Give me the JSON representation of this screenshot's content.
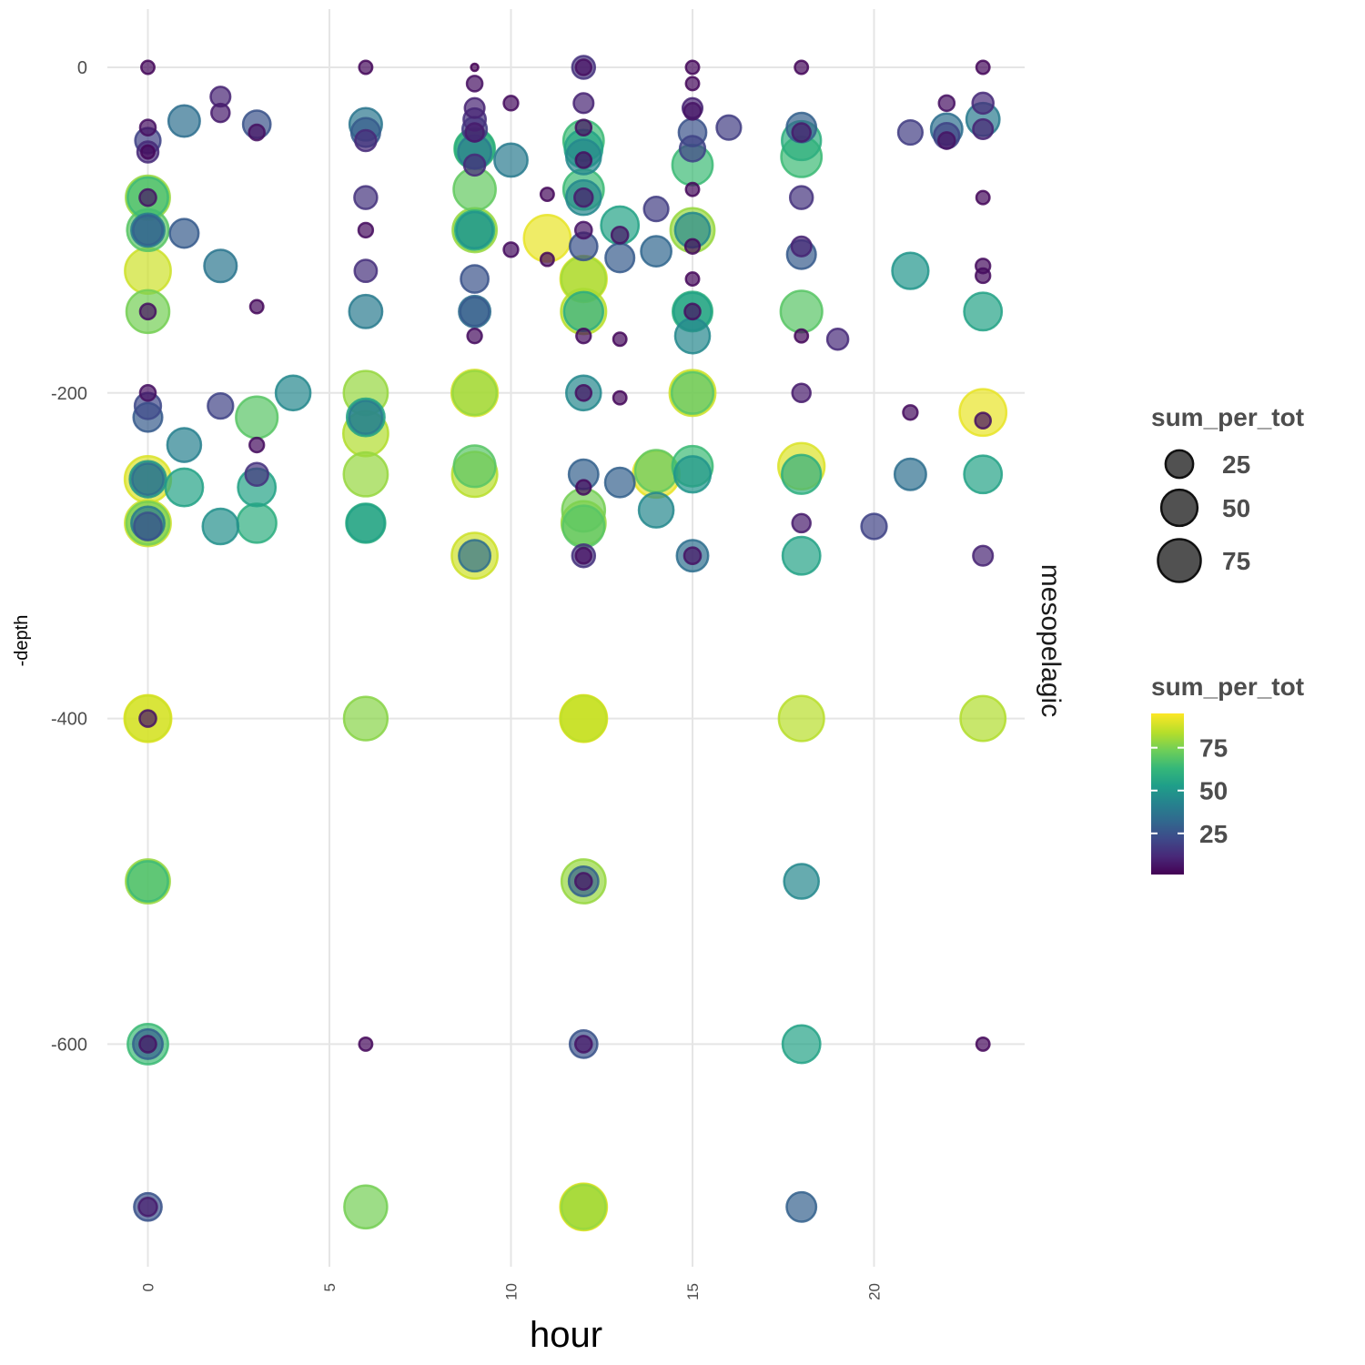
{
  "chart_data": {
    "type": "scatter",
    "subtype": "bubble",
    "facet_label": "mesopelagic",
    "xlabel": "hour",
    "ylabel": "-depth",
    "xlim": [
      -1.1,
      24.1
    ],
    "ylim": [
      -735,
      33
    ],
    "x_ticks": [
      0,
      5,
      10,
      15,
      20
    ],
    "x_tick_labels": [
      "0",
      "5",
      "10",
      "15",
      "20"
    ],
    "y_ticks": [
      0,
      -200,
      -400,
      -600
    ],
    "y_tick_labels": [
      "0",
      "-200",
      "-400",
      "-600"
    ],
    "grid": true,
    "legend_size": {
      "title": "sum_per_tot",
      "values": [
        25,
        50,
        75
      ],
      "labels": [
        "25",
        "50",
        "75"
      ]
    },
    "legend_color": {
      "title": "sum_per_tot",
      "labels": [
        "75",
        "50",
        "25"
      ],
      "label_values": [
        75,
        50,
        25
      ],
      "range": [
        1,
        95
      ],
      "palette": "viridis"
    },
    "points": [
      {
        "x": 0,
        "y": 0,
        "v": 3
      },
      {
        "x": 0,
        "y": -37,
        "v": 5
      },
      {
        "x": 0,
        "y": -45,
        "v": 20
      },
      {
        "x": 0,
        "y": -52,
        "v": 12
      },
      {
        "x": 0,
        "y": -52,
        "v": 3
      },
      {
        "x": 0,
        "y": -80,
        "v": 80
      },
      {
        "x": 0,
        "y": -80,
        "v": 65
      },
      {
        "x": 0,
        "y": -80,
        "v": 6
      },
      {
        "x": 0,
        "y": -100,
        "v": 70
      },
      {
        "x": 0,
        "y": -100,
        "v": 40
      },
      {
        "x": 0,
        "y": -100,
        "v": 30
      },
      {
        "x": 0,
        "y": -125,
        "v": 88
      },
      {
        "x": 0,
        "y": -150,
        "v": 75
      },
      {
        "x": 0,
        "y": -150,
        "v": 5
      },
      {
        "x": 0,
        "y": -200,
        "v": 5
      },
      {
        "x": 0,
        "y": -208,
        "v": 22
      },
      {
        "x": 0,
        "y": -215,
        "v": 28
      },
      {
        "x": 0,
        "y": -253,
        "v": 90
      },
      {
        "x": 0,
        "y": -253,
        "v": 50
      },
      {
        "x": 0,
        "y": -253,
        "v": 35
      },
      {
        "x": 0,
        "y": -280,
        "v": 88
      },
      {
        "x": 0,
        "y": -280,
        "v": 75
      },
      {
        "x": 0,
        "y": -280,
        "v": 40
      },
      {
        "x": 0,
        "y": -282,
        "v": 25
      },
      {
        "x": 0,
        "y": -400,
        "v": 93
      },
      {
        "x": 0,
        "y": -400,
        "v": 88
      },
      {
        "x": 0,
        "y": -400,
        "v": 6
      },
      {
        "x": 0,
        "y": -500,
        "v": 80
      },
      {
        "x": 0,
        "y": -500,
        "v": 65
      },
      {
        "x": 0,
        "y": -600,
        "v": 65
      },
      {
        "x": 0,
        "y": -600,
        "v": 30
      },
      {
        "x": 0,
        "y": -600,
        "v": 6
      },
      {
        "x": 0,
        "y": -700,
        "v": 25
      },
      {
        "x": 0,
        "y": -700,
        "v": 8
      },
      {
        "x": 1,
        "y": -33,
        "v": 35
      },
      {
        "x": 1,
        "y": -102,
        "v": 28
      },
      {
        "x": 1,
        "y": -232,
        "v": 42
      },
      {
        "x": 1,
        "y": -258,
        "v": 55
      },
      {
        "x": 2,
        "y": -18,
        "v": 10
      },
      {
        "x": 2,
        "y": -28,
        "v": 8
      },
      {
        "x": 2,
        "y": -122,
        "v": 38
      },
      {
        "x": 2,
        "y": -208,
        "v": 20
      },
      {
        "x": 2,
        "y": -282,
        "v": 48
      },
      {
        "x": 3,
        "y": -35,
        "v": 25
      },
      {
        "x": 3,
        "y": -40,
        "v": 5
      },
      {
        "x": 3,
        "y": -147,
        "v": 3
      },
      {
        "x": 3,
        "y": -215,
        "v": 70
      },
      {
        "x": 3,
        "y": -232,
        "v": 4
      },
      {
        "x": 3,
        "y": -250,
        "v": 15
      },
      {
        "x": 3,
        "y": -258,
        "v": 55
      },
      {
        "x": 3,
        "y": -280,
        "v": 60
      },
      {
        "x": 4,
        "y": -200,
        "v": 45
      },
      {
        "x": 6,
        "y": 0,
        "v": 3
      },
      {
        "x": 6,
        "y": -35,
        "v": 38
      },
      {
        "x": 6,
        "y": -40,
        "v": 28
      },
      {
        "x": 6,
        "y": -45,
        "v": 12
      },
      {
        "x": 6,
        "y": -80,
        "v": 15
      },
      {
        "x": 6,
        "y": -100,
        "v": 4
      },
      {
        "x": 6,
        "y": -125,
        "v": 14
      },
      {
        "x": 6,
        "y": -150,
        "v": 40
      },
      {
        "x": 6,
        "y": -200,
        "v": 80
      },
      {
        "x": 6,
        "y": -215,
        "v": 55
      },
      {
        "x": 6,
        "y": -225,
        "v": 84
      },
      {
        "x": 6,
        "y": -215,
        "v": 40
      },
      {
        "x": 6,
        "y": -250,
        "v": 80
      },
      {
        "x": 6,
        "y": -280,
        "v": 60
      },
      {
        "x": 6,
        "y": -280,
        "v": 55
      },
      {
        "x": 6,
        "y": -400,
        "v": 78
      },
      {
        "x": 6,
        "y": -600,
        "v": 3
      },
      {
        "x": 6,
        "y": -700,
        "v": 75
      },
      {
        "x": 9,
        "y": 0,
        "v": 1
      },
      {
        "x": 9,
        "y": -10,
        "v": 5
      },
      {
        "x": 9,
        "y": -25,
        "v": 10
      },
      {
        "x": 9,
        "y": -32,
        "v": 14
      },
      {
        "x": 9,
        "y": -38,
        "v": 18
      },
      {
        "x": 9,
        "y": -40,
        "v": 8
      },
      {
        "x": 9,
        "y": -50,
        "v": 65
      },
      {
        "x": 9,
        "y": -50,
        "v": 60
      },
      {
        "x": 9,
        "y": -52,
        "v": 40
      },
      {
        "x": 9,
        "y": -60,
        "v": 12
      },
      {
        "x": 9,
        "y": -75,
        "v": 72
      },
      {
        "x": 9,
        "y": -100,
        "v": 80
      },
      {
        "x": 9,
        "y": -100,
        "v": 60
      },
      {
        "x": 9,
        "y": -100,
        "v": 50
      },
      {
        "x": 9,
        "y": -130,
        "v": 25
      },
      {
        "x": 9,
        "y": -150,
        "v": 35
      },
      {
        "x": 9,
        "y": -150,
        "v": 28
      },
      {
        "x": 9,
        "y": -165,
        "v": 4
      },
      {
        "x": 9,
        "y": -200,
        "v": 90
      },
      {
        "x": 9,
        "y": -200,
        "v": 80
      },
      {
        "x": 9,
        "y": -250,
        "v": 85
      },
      {
        "x": 9,
        "y": -245,
        "v": 70
      },
      {
        "x": 9,
        "y": -300,
        "v": 88
      },
      {
        "x": 9,
        "y": -300,
        "v": 35
      },
      {
        "x": 10,
        "y": -22,
        "v": 4
      },
      {
        "x": 10,
        "y": -57,
        "v": 40
      },
      {
        "x": 10,
        "y": -112,
        "v": 4
      },
      {
        "x": 11,
        "y": -105,
        "v": 92
      },
      {
        "x": 11,
        "y": -78,
        "v": 3
      },
      {
        "x": 11,
        "y": -118,
        "v": 3
      },
      {
        "x": 12,
        "y": 0,
        "v": 15
      },
      {
        "x": 12,
        "y": 0,
        "v": 5
      },
      {
        "x": 12,
        "y": -22,
        "v": 10
      },
      {
        "x": 12,
        "y": -37,
        "v": 5
      },
      {
        "x": 12,
        "y": -45,
        "v": 65
      },
      {
        "x": 12,
        "y": -50,
        "v": 55
      },
      {
        "x": 12,
        "y": -55,
        "v": 45
      },
      {
        "x": 12,
        "y": -57,
        "v": 5
      },
      {
        "x": 12,
        "y": -75,
        "v": 65
      },
      {
        "x": 12,
        "y": -80,
        "v": 45
      },
      {
        "x": 12,
        "y": -80,
        "v": 8
      },
      {
        "x": 12,
        "y": -100,
        "v": 6
      },
      {
        "x": 12,
        "y": -110,
        "v": 25
      },
      {
        "x": 12,
        "y": -130,
        "v": 90
      },
      {
        "x": 12,
        "y": -130,
        "v": 82
      },
      {
        "x": 12,
        "y": -150,
        "v": 85
      },
      {
        "x": 12,
        "y": -150,
        "v": 60
      },
      {
        "x": 12,
        "y": -165,
        "v": 4
      },
      {
        "x": 12,
        "y": -200,
        "v": 45
      },
      {
        "x": 12,
        "y": -200,
        "v": 5
      },
      {
        "x": 12,
        "y": -250,
        "v": 30
      },
      {
        "x": 12,
        "y": -258,
        "v": 4
      },
      {
        "x": 12,
        "y": -272,
        "v": 75
      },
      {
        "x": 12,
        "y": -280,
        "v": 80
      },
      {
        "x": 12,
        "y": -282,
        "v": 70
      },
      {
        "x": 12,
        "y": -300,
        "v": 15
      },
      {
        "x": 12,
        "y": -300,
        "v": 5
      },
      {
        "x": 12,
        "y": -400,
        "v": 93
      },
      {
        "x": 12,
        "y": -400,
        "v": 90
      },
      {
        "x": 12,
        "y": -400,
        "v": 86
      },
      {
        "x": 12,
        "y": -500,
        "v": 80
      },
      {
        "x": 12,
        "y": -500,
        "v": 30
      },
      {
        "x": 12,
        "y": -500,
        "v": 6
      },
      {
        "x": 12,
        "y": -600,
        "v": 25
      },
      {
        "x": 12,
        "y": -600,
        "v": 6
      },
      {
        "x": 12,
        "y": -700,
        "v": 92
      },
      {
        "x": 12,
        "y": -700,
        "v": 88
      },
      {
        "x": 12,
        "y": -700,
        "v": 80
      },
      {
        "x": 13,
        "y": -97,
        "v": 55
      },
      {
        "x": 13,
        "y": -103,
        "v": 6
      },
      {
        "x": 13,
        "y": -117,
        "v": 28
      },
      {
        "x": 13,
        "y": -167,
        "v": 3
      },
      {
        "x": 13,
        "y": -203,
        "v": 3
      },
      {
        "x": 13,
        "y": -255,
        "v": 30
      },
      {
        "x": 14,
        "y": -87,
        "v": 18
      },
      {
        "x": 14,
        "y": -113,
        "v": 32
      },
      {
        "x": 14,
        "y": -250,
        "v": 92
      },
      {
        "x": 14,
        "y": -248,
        "v": 72
      },
      {
        "x": 14,
        "y": -272,
        "v": 45
      },
      {
        "x": 15,
        "y": 0,
        "v": 3
      },
      {
        "x": 15,
        "y": -10,
        "v": 3
      },
      {
        "x": 15,
        "y": -25,
        "v": 10
      },
      {
        "x": 15,
        "y": -27,
        "v": 6
      },
      {
        "x": 15,
        "y": -40,
        "v": 25
      },
      {
        "x": 15,
        "y": -50,
        "v": 20
      },
      {
        "x": 15,
        "y": -60,
        "v": 65
      },
      {
        "x": 15,
        "y": -75,
        "v": 3
      },
      {
        "x": 15,
        "y": -100,
        "v": 80
      },
      {
        "x": 15,
        "y": -100,
        "v": 45
      },
      {
        "x": 15,
        "y": -110,
        "v": 4
      },
      {
        "x": 15,
        "y": -130,
        "v": 3
      },
      {
        "x": 15,
        "y": -150,
        "v": 62
      },
      {
        "x": 15,
        "y": -150,
        "v": 55
      },
      {
        "x": 15,
        "y": -150,
        "v": 5
      },
      {
        "x": 15,
        "y": -165,
        "v": 45
      },
      {
        "x": 15,
        "y": -200,
        "v": 88
      },
      {
        "x": 15,
        "y": -200,
        "v": 70
      },
      {
        "x": 15,
        "y": -245,
        "v": 65
      },
      {
        "x": 15,
        "y": -250,
        "v": 50
      },
      {
        "x": 15,
        "y": -300,
        "v": 35
      },
      {
        "x": 15,
        "y": -300,
        "v": 6
      },
      {
        "x": 16,
        "y": -37,
        "v": 18
      },
      {
        "x": 18,
        "y": 0,
        "v": 3
      },
      {
        "x": 18,
        "y": -37,
        "v": 30
      },
      {
        "x": 18,
        "y": -40,
        "v": 8
      },
      {
        "x": 18,
        "y": -45,
        "v": 60
      },
      {
        "x": 18,
        "y": -55,
        "v": 65
      },
      {
        "x": 18,
        "y": -80,
        "v": 15
      },
      {
        "x": 18,
        "y": -110,
        "v": 10
      },
      {
        "x": 18,
        "y": -115,
        "v": 28
      },
      {
        "x": 18,
        "y": -150,
        "v": 70
      },
      {
        "x": 18,
        "y": -165,
        "v": 3
      },
      {
        "x": 18,
        "y": -200,
        "v": 8
      },
      {
        "x": 18,
        "y": -245,
        "v": 90
      },
      {
        "x": 18,
        "y": -250,
        "v": 60
      },
      {
        "x": 18,
        "y": -280,
        "v": 8
      },
      {
        "x": 18,
        "y": -300,
        "v": 55
      },
      {
        "x": 18,
        "y": -400,
        "v": 85
      },
      {
        "x": 18,
        "y": -500,
        "v": 45
      },
      {
        "x": 18,
        "y": -600,
        "v": 55
      },
      {
        "x": 18,
        "y": -700,
        "v": 30
      },
      {
        "x": 19,
        "y": -167,
        "v": 12
      },
      {
        "x": 20,
        "y": -282,
        "v": 20
      },
      {
        "x": 21,
        "y": -40,
        "v": 18
      },
      {
        "x": 21,
        "y": -125,
        "v": 50
      },
      {
        "x": 21,
        "y": -212,
        "v": 4
      },
      {
        "x": 21,
        "y": -250,
        "v": 35
      },
      {
        "x": 22,
        "y": -22,
        "v": 5
      },
      {
        "x": 22,
        "y": -38,
        "v": 35
      },
      {
        "x": 22,
        "y": -42,
        "v": 20
      },
      {
        "x": 22,
        "y": -45,
        "v": 6
      },
      {
        "x": 23,
        "y": 0,
        "v": 3
      },
      {
        "x": 23,
        "y": -22,
        "v": 12
      },
      {
        "x": 23,
        "y": -32,
        "v": 40
      },
      {
        "x": 23,
        "y": -38,
        "v": 10
      },
      {
        "x": 23,
        "y": -80,
        "v": 3
      },
      {
        "x": 23,
        "y": -122,
        "v": 4
      },
      {
        "x": 23,
        "y": -128,
        "v": 4
      },
      {
        "x": 23,
        "y": -150,
        "v": 55
      },
      {
        "x": 23,
        "y": -212,
        "v": 92
      },
      {
        "x": 23,
        "y": -217,
        "v": 5
      },
      {
        "x": 23,
        "y": -250,
        "v": 55
      },
      {
        "x": 23,
        "y": -300,
        "v": 10
      },
      {
        "x": 23,
        "y": -400,
        "v": 84
      },
      {
        "x": 23,
        "y": -600,
        "v": 3
      }
    ]
  }
}
